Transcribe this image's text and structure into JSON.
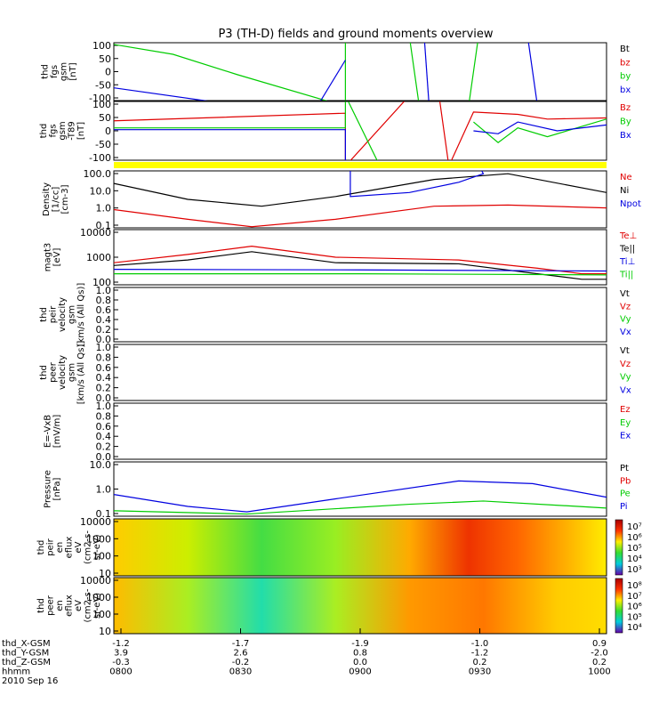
{
  "title": "P3 (TH-D) fields and ground moments overview",
  "time_axis": {
    "ticks": [
      "0800",
      "0830",
      "0900",
      "0930",
      "1000"
    ],
    "rows": [
      {
        "label": "thd_X-GSM",
        "values": [
          "-1.2",
          "-1.7",
          "-1.9",
          "-1.0",
          "0.9"
        ]
      },
      {
        "label": "thd_Y-GSM",
        "values": [
          "3.9",
          "2.6",
          "0.8",
          "-1.2",
          "-2.0"
        ]
      },
      {
        "label": "thd_Z-GSM",
        "values": [
          "-0.3",
          "-0.2",
          "0.0",
          "0.2",
          "0.2"
        ]
      },
      {
        "label": "hhmm",
        "values": [
          "0800",
          "0830",
          "0900",
          "0930",
          "1000"
        ]
      }
    ],
    "date": "2010 Sep 16"
  },
  "colors": {
    "black": "#000000",
    "red": "#e00000",
    "green": "#00cc00",
    "blue": "#0000e0",
    "yellow": "#ffff00"
  },
  "chart_data": [
    {
      "type": "line",
      "name": "fgs",
      "ylabel": [
        "thd",
        "fgs",
        "gsm",
        "[nT]"
      ],
      "ticks": [
        "100",
        "50",
        "0",
        "-50",
        "-100"
      ],
      "legend": [
        {
          "text": "Bt",
          "color": "#000000"
        },
        {
          "text": "bz",
          "color": "#e00000"
        },
        {
          "text": "by",
          "color": "#00cc00"
        },
        {
          "text": "bx",
          "color": "#0000e0"
        }
      ]
    },
    {
      "type": "line",
      "name": "fgs-t89",
      "ylabel": [
        "thd",
        "fgs",
        "gsm",
        "-T89",
        "[nT]"
      ],
      "ticks": [
        "100",
        "50",
        "0",
        "-50",
        "-100"
      ],
      "legend": [
        {
          "text": "Bz",
          "color": "#e00000"
        },
        {
          "text": "By",
          "color": "#00cc00"
        },
        {
          "text": "Bx",
          "color": "#0000e0"
        }
      ]
    },
    {
      "type": "line",
      "name": "density",
      "scale": "log",
      "ylabel": [
        "Density",
        "[1/cc]",
        "[cm-3]"
      ],
      "ticks": [
        "100.0",
        "10.0",
        "1.0",
        "0.1"
      ],
      "legend": [
        {
          "text": "Ne",
          "color": "#e00000"
        },
        {
          "text": "Ni",
          "color": "#000000"
        },
        {
          "text": "Npot",
          "color": "#0000e0"
        }
      ]
    },
    {
      "type": "line",
      "name": "temperature",
      "scale": "log",
      "ylabel": [
        "magt3",
        "[eV]"
      ],
      "ticks": [
        "10000",
        "1000",
        "100"
      ],
      "legend": [
        {
          "text": "Te⊥",
          "color": "#e00000"
        },
        {
          "text": "Te||",
          "color": "#000000"
        },
        {
          "text": "Ti⊥",
          "color": "#0000e0"
        },
        {
          "text": "Ti||",
          "color": "#00cc00"
        }
      ]
    },
    {
      "type": "line",
      "name": "peir-velocity",
      "ylabel": [
        "thd",
        "peir",
        "velocity",
        "gsm",
        "[km/s (All Qs)]"
      ],
      "ticks": [
        "1.0",
        "0.8",
        "0.6",
        "0.4",
        "0.2",
        "0.0"
      ],
      "legend": [
        {
          "text": "Vt",
          "color": "#000000"
        },
        {
          "text": "Vz",
          "color": "#e00000"
        },
        {
          "text": "Vy",
          "color": "#00cc00"
        },
        {
          "text": "Vx",
          "color": "#0000e0"
        }
      ]
    },
    {
      "type": "line",
      "name": "peer-velocity",
      "ylabel": [
        "thd",
        "peer",
        "velocity",
        "gsm",
        "[km/s (All Qs)]"
      ],
      "ticks": [
        "1.0",
        "0.8",
        "0.6",
        "0.4",
        "0.2",
        "0.0"
      ],
      "legend": [
        {
          "text": "Vt",
          "color": "#000000"
        },
        {
          "text": "Vz",
          "color": "#e00000"
        },
        {
          "text": "Vy",
          "color": "#00cc00"
        },
        {
          "text": "Vx",
          "color": "#0000e0"
        }
      ]
    },
    {
      "type": "line",
      "name": "efield",
      "ylabel": [
        "E=-VxB",
        "[mV/m]"
      ],
      "ticks": [
        "1.0",
        "0.8",
        "0.6",
        "0.4",
        "0.2",
        "0.0"
      ],
      "legend": [
        {
          "text": "Ez",
          "color": "#e00000"
        },
        {
          "text": "Ey",
          "color": "#00cc00"
        },
        {
          "text": "Ex",
          "color": "#0000e0"
        }
      ]
    },
    {
      "type": "line",
      "name": "pressure",
      "scale": "log",
      "ylabel": [
        "Pressure",
        "[nPa]"
      ],
      "ticks": [
        "10.0",
        "1.0",
        "0.1"
      ],
      "legend": [
        {
          "text": "Pt",
          "color": "#000000"
        },
        {
          "text": "Pb",
          "color": "#e00000"
        },
        {
          "text": "Pe",
          "color": "#00cc00"
        },
        {
          "text": "Pi",
          "color": "#0000e0"
        }
      ]
    },
    {
      "type": "heatmap",
      "name": "peir-spectrogram",
      "ylabel": [
        "thd",
        "peir",
        "en",
        "eflux",
        "eV",
        "(cm2-s-",
        "sr-eV)"
      ],
      "ticks": [
        "10000",
        "1000",
        "100",
        "10"
      ],
      "colorbar": [
        "10⁷",
        "10⁶",
        "10⁵",
        "10⁴",
        "10³"
      ]
    },
    {
      "type": "heatmap",
      "name": "peer-spectrogram",
      "ylabel": [
        "thd",
        "peer",
        "en",
        "eflux",
        "eV",
        "(cm2-s-",
        "sr-eV)"
      ],
      "ticks": [
        "10000",
        "1000",
        "100",
        "10"
      ],
      "colorbar": [
        "10⁸",
        "10⁷",
        "10⁶",
        "10⁵",
        "10⁴"
      ]
    }
  ]
}
